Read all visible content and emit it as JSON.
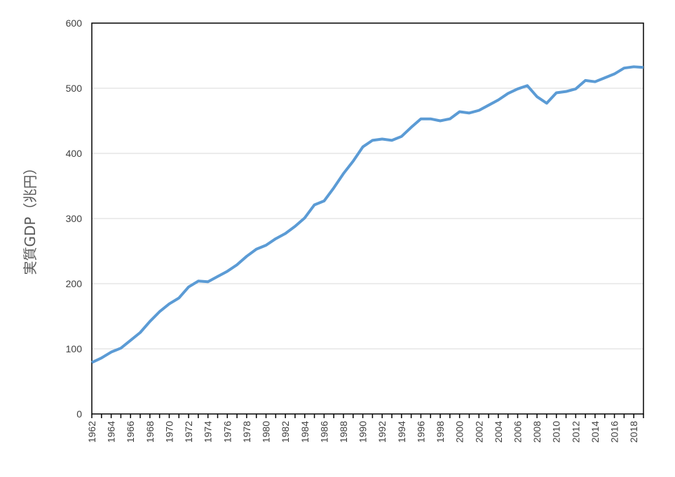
{
  "chart_data": {
    "type": "line",
    "title": "",
    "xlabel": "",
    "ylabel": "実質GDP（兆円）",
    "ylim": [
      0,
      600
    ],
    "yticks": [
      0,
      100,
      200,
      300,
      400,
      500,
      600
    ],
    "xlim": [
      1962,
      2019
    ],
    "xtick_labels": [
      "1962",
      "1964",
      "1966",
      "1968",
      "1970",
      "1972",
      "1974",
      "1976",
      "1978",
      "1980",
      "1982",
      "1984",
      "1986",
      "1988",
      "1990",
      "1992",
      "1994",
      "1996",
      "1998",
      "2000",
      "2002",
      "2004",
      "2006",
      "2008",
      "2010",
      "2012",
      "2014",
      "2016",
      "2018"
    ],
    "grid": true,
    "legend": "none",
    "series_color": "#5b9bd5",
    "grid_color": "#d9d9d9",
    "x": [
      1962,
      1963,
      1964,
      1965,
      1966,
      1967,
      1968,
      1969,
      1970,
      1971,
      1972,
      1973,
      1974,
      1975,
      1976,
      1977,
      1978,
      1979,
      1980,
      1981,
      1982,
      1983,
      1984,
      1985,
      1986,
      1987,
      1988,
      1989,
      1990,
      1991,
      1992,
      1993,
      1994,
      1995,
      1996,
      1997,
      1998,
      1999,
      2000,
      2001,
      2002,
      2003,
      2004,
      2005,
      2006,
      2007,
      2008,
      2009,
      2010,
      2011,
      2012,
      2013,
      2014,
      2015,
      2016,
      2017,
      2018,
      2019
    ],
    "y": [
      79,
      86,
      95,
      101,
      113,
      125,
      142,
      157,
      169,
      178,
      195,
      204,
      203,
      211,
      219,
      229,
      242,
      253,
      259,
      269,
      277,
      288,
      301,
      321,
      327,
      347,
      369,
      388,
      410,
      420,
      422,
      420,
      426,
      440,
      453,
      453,
      450,
      453,
      464,
      462,
      466,
      474,
      482,
      492,
      499,
      504,
      487,
      477,
      493,
      495,
      499,
      512,
      510,
      516,
      522,
      531,
      533,
      532
    ]
  }
}
